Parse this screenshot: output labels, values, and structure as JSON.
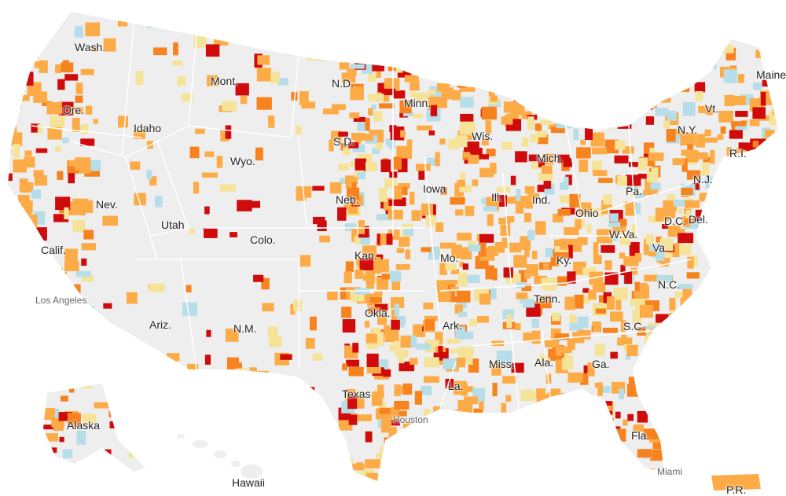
{
  "colors": {
    "land": "#eeeeee",
    "background": "#ffffff",
    "border": "#ffffff",
    "low": "#b6dde8",
    "moderate": "#f5e39a",
    "high": "#fdab46",
    "higher": "#f7831f",
    "highest": "#d00b0b"
  },
  "states": [
    "Wash.",
    "Mont.",
    "N.D.",
    "Minn.",
    "Maine",
    "Ore.",
    "Idaho",
    "S.D.",
    "Wis.",
    "Vt.",
    "N.Y.",
    "Mich.",
    "R.I.",
    "Wyo.",
    "Neb.",
    "Iowa",
    "Pa.",
    "N.J.",
    "Nev.",
    "Utah",
    "Ill.",
    "Ind.",
    "Ohio",
    "D.C.",
    "Del.",
    "W.Va.",
    "Colo.",
    "Kan.",
    "Mo.",
    "Ky.",
    "Va.",
    "Calif.",
    "Tenn.",
    "N.C.",
    "Okla.",
    "Ark.",
    "Ariz.",
    "N.M.",
    "S.C.",
    "Miss.",
    "Ala.",
    "Ga.",
    "Texas",
    "La.",
    "Alaska",
    "Fla.",
    "Hawaii",
    "P.R."
  ],
  "cities": [
    "Los Angeles",
    "Houston",
    "Miami"
  ]
}
